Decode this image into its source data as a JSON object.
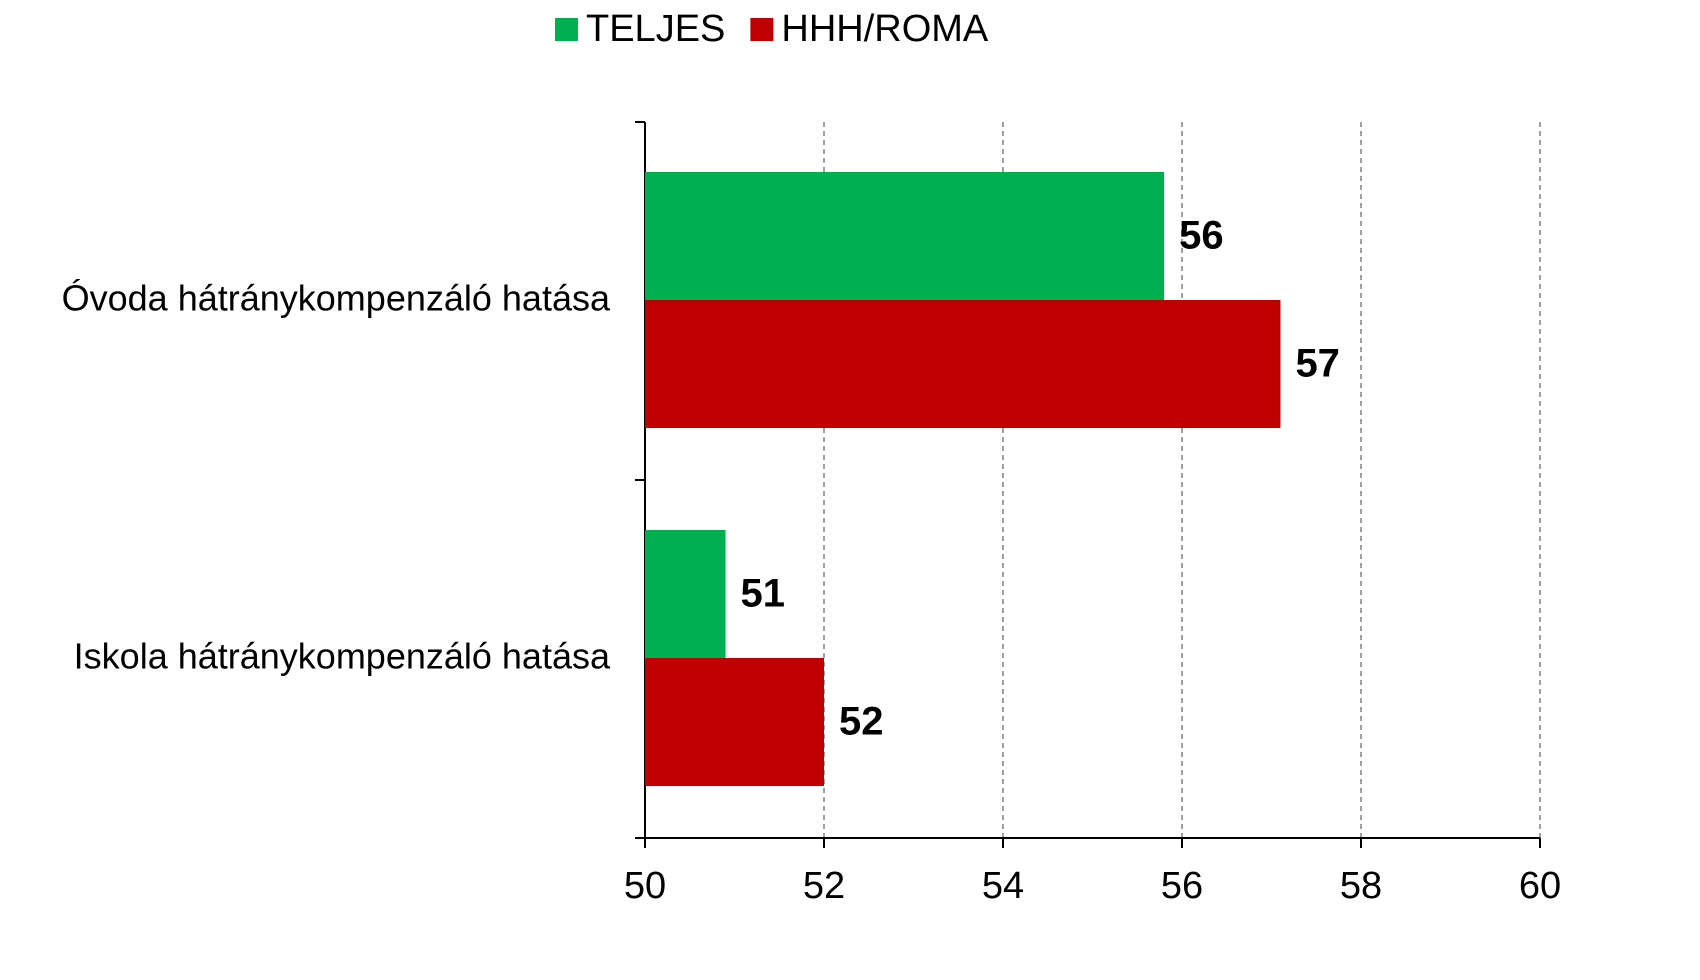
{
  "chart_data": {
    "type": "bar",
    "orientation": "horizontal",
    "categories": [
      "Óvoda hátránykompenzáló hatása",
      "Iskola hátránykompenzáló hatása"
    ],
    "series": [
      {
        "name": "TELJES",
        "color": "#00b050",
        "values": [
          55.8,
          50.9
        ],
        "value_labels": [
          "56",
          "51"
        ]
      },
      {
        "name": "HHH/ROMA",
        "color": "#c00000",
        "values": [
          57.1,
          52.0
        ],
        "value_labels": [
          "57",
          "52"
        ]
      }
    ],
    "xlim": [
      50,
      60
    ],
    "xticks": [
      50,
      52,
      54,
      56,
      58,
      60
    ],
    "grid": true,
    "legend": "top"
  }
}
